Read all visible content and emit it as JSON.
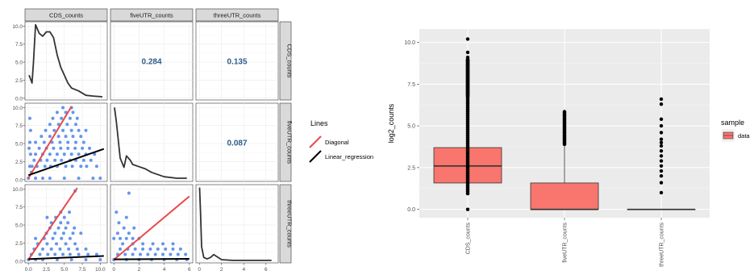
{
  "chart_data": [
    {
      "type": "scatter",
      "variables": [
        "CDS_counts",
        "fiveUTR_counts",
        "threeUTR_counts"
      ],
      "correlations": [
        {
          "row": 0,
          "col": 1,
          "value": "0.284"
        },
        {
          "row": 0,
          "col": 2,
          "value": "0.135"
        },
        {
          "row": 1,
          "col": 2,
          "value": "0.087"
        }
      ],
      "ranges": [
        [
          0,
          10.5
        ],
        [
          0,
          6
        ],
        [
          0,
          6.8
        ]
      ],
      "ticks": {
        "x": [
          [
            0,
            2.5,
            5,
            7.5,
            10
          ],
          [
            0,
            2,
            4,
            6
          ],
          [
            0,
            2,
            4,
            6
          ]
        ],
        "y": [
          [
            0,
            2.5,
            5,
            7.5,
            10
          ],
          [
            0,
            2.5,
            5,
            7.5,
            10
          ],
          [
            0,
            2.5,
            5,
            7.5,
            10
          ]
        ],
        "x_labels": [
          [
            "0.0",
            "2.5",
            "5.0",
            "7.5",
            "10.0"
          ],
          [
            "0",
            "2",
            "4",
            "6"
          ],
          [
            "0",
            "2",
            "4",
            "6"
          ]
        ],
        "y_labels": [
          "0.0",
          "2.5",
          "5.0",
          "7.5",
          "10.0"
        ]
      },
      "density": {
        "CDS_counts": {
          "x": [
            0.1,
            0.5,
            0.7,
            1.0,
            1.5,
            2.0,
            2.5,
            3.0,
            3.5,
            4.0,
            4.5,
            5.0,
            5.5,
            6.0,
            7.0,
            8.0,
            9.0,
            10.3
          ],
          "y": [
            3.2,
            2.1,
            4.8,
            10.2,
            9.0,
            8.6,
            9.2,
            9.2,
            8.4,
            6.0,
            4.3,
            3.2,
            2.1,
            1.4,
            1.0,
            0.4,
            0.3,
            0.2
          ]
        },
        "fiveUTR_counts": {
          "x": [
            0.05,
            0.2,
            0.5,
            0.8,
            1.0,
            1.3,
            1.5,
            2.0,
            2.5,
            3.0,
            4.0,
            5.0,
            5.8
          ],
          "y": [
            10.0,
            8.0,
            3.0,
            1.7,
            3.3,
            2.7,
            2.1,
            1.8,
            1.5,
            1.0,
            0.4,
            0.2,
            0.2
          ]
        },
        "threeUTR_counts": {
          "x": [
            0.02,
            0.1,
            0.2,
            0.4,
            0.7,
            1.0,
            1.3,
            2.0,
            3.0,
            4.0,
            5.0,
            6.5
          ],
          "y": [
            10.2,
            7.0,
            2.0,
            0.5,
            0.3,
            0.5,
            0.9,
            0.2,
            0.1,
            0.1,
            0.1,
            0.1
          ]
        }
      },
      "scatter_points": {
        "fiveUTR_vs_CDS": [
          [
            0,
            0
          ],
          [
            1,
            0
          ],
          [
            2,
            0
          ],
          [
            3,
            0
          ],
          [
            5,
            0
          ],
          [
            7,
            0
          ],
          [
            9,
            0
          ],
          [
            10,
            0
          ],
          [
            0.5,
            1
          ],
          [
            1.2,
            1
          ],
          [
            2.3,
            1
          ],
          [
            3.1,
            1
          ],
          [
            4,
            1
          ],
          [
            5.2,
            1
          ],
          [
            6.1,
            1
          ],
          [
            7.3,
            1
          ],
          [
            8.1,
            1
          ],
          [
            9.5,
            1
          ],
          [
            0.8,
            1.5
          ],
          [
            1.7,
            1.5
          ],
          [
            2.6,
            1.5
          ],
          [
            3.7,
            1.5
          ],
          [
            4.6,
            1.5
          ],
          [
            5.8,
            1.5
          ],
          [
            6.6,
            1.5
          ],
          [
            7.7,
            1.5
          ],
          [
            8.7,
            1.5
          ],
          [
            1,
            2
          ],
          [
            2,
            2
          ],
          [
            3,
            2
          ],
          [
            4,
            2
          ],
          [
            5,
            2
          ],
          [
            6,
            2
          ],
          [
            7,
            2
          ],
          [
            8,
            2
          ],
          [
            9.2,
            2
          ],
          [
            1.5,
            2.5
          ],
          [
            2.5,
            2.5
          ],
          [
            3.5,
            2.5
          ],
          [
            4.5,
            2.5
          ],
          [
            5.5,
            2.5
          ],
          [
            6.5,
            2.5
          ],
          [
            7.5,
            2.5
          ],
          [
            8.5,
            2.5
          ],
          [
            1,
            3
          ],
          [
            2.2,
            3
          ],
          [
            3.3,
            3
          ],
          [
            4.4,
            3
          ],
          [
            5.5,
            3
          ],
          [
            6.6,
            3
          ],
          [
            7.7,
            3
          ],
          [
            1.8,
            3.5
          ],
          [
            3,
            3.5
          ],
          [
            4.2,
            3.5
          ],
          [
            5.2,
            3.5
          ],
          [
            6.2,
            3.5
          ],
          [
            7.3,
            3.5
          ],
          [
            2.4,
            4
          ],
          [
            3.6,
            4
          ],
          [
            4.8,
            4
          ],
          [
            6,
            4
          ],
          [
            7,
            4
          ],
          [
            8,
            4
          ],
          [
            3,
            4.5
          ],
          [
            4.2,
            4.5
          ],
          [
            5.4,
            4.5
          ],
          [
            6.6,
            4.5
          ],
          [
            3.4,
            5
          ],
          [
            4.6,
            5
          ],
          [
            5.8,
            5
          ],
          [
            6.8,
            5
          ],
          [
            4,
            5.5
          ],
          [
            5.2,
            5.5
          ],
          [
            6.2,
            5.5
          ],
          [
            4.8,
            5.9
          ],
          [
            6,
            5.9
          ],
          [
            0.2,
            1
          ],
          [
            0.3,
            2
          ],
          [
            0.2,
            3
          ],
          [
            0.3,
            4
          ],
          [
            0.2,
            5
          ],
          [
            0.4,
            0.5
          ],
          [
            0.1,
            2.5
          ]
        ],
        "threeUTR_vs_CDS": [
          [
            0,
            0
          ],
          [
            1,
            0
          ],
          [
            2,
            0
          ],
          [
            4,
            0
          ],
          [
            6,
            0
          ],
          [
            8,
            0
          ],
          [
            10,
            0
          ],
          [
            0.4,
            0.5
          ],
          [
            1.6,
            0.5
          ],
          [
            2.7,
            0.5
          ],
          [
            3.7,
            0.5
          ],
          [
            4.8,
            0.5
          ],
          [
            5.8,
            0.5
          ],
          [
            7,
            0.5
          ],
          [
            8.3,
            0.5
          ],
          [
            9.5,
            0.5
          ],
          [
            0.8,
            1
          ],
          [
            2,
            1
          ],
          [
            3.2,
            1
          ],
          [
            4.4,
            1
          ],
          [
            5.6,
            1
          ],
          [
            6.8,
            1
          ],
          [
            8,
            1
          ],
          [
            1.3,
            1.5
          ],
          [
            2.6,
            1.5
          ],
          [
            3.9,
            1.5
          ],
          [
            5.2,
            1.5
          ],
          [
            6.5,
            1.5
          ],
          [
            1,
            2
          ],
          [
            2.2,
            2
          ],
          [
            3.4,
            2
          ],
          [
            4.6,
            2
          ],
          [
            5.8,
            2
          ],
          [
            2.5,
            2.5
          ],
          [
            3.7,
            2.5
          ],
          [
            4.9,
            2.5
          ],
          [
            6.2,
            2.5
          ],
          [
            7.3,
            2.5
          ],
          [
            3,
            3
          ],
          [
            4.2,
            3
          ],
          [
            5.2,
            3
          ],
          [
            6.4,
            3
          ],
          [
            3.2,
            3.5
          ],
          [
            4.5,
            3.5
          ],
          [
            5.5,
            3.5
          ],
          [
            2.6,
            4
          ],
          [
            3.8,
            4
          ],
          [
            5,
            4
          ],
          [
            4.5,
            4.5
          ],
          [
            5.7,
            4.5
          ],
          [
            6.5,
            6.5
          ]
        ],
        "threeUTR_vs_fiveUTR": [
          [
            0,
            0
          ],
          [
            1,
            0
          ],
          [
            2,
            0
          ],
          [
            3,
            0
          ],
          [
            4,
            0
          ],
          [
            5,
            0
          ],
          [
            5.8,
            0
          ],
          [
            0.3,
            0.5
          ],
          [
            0.9,
            0.5
          ],
          [
            1.5,
            0.5
          ],
          [
            2.1,
            0.5
          ],
          [
            2.7,
            0.5
          ],
          [
            3.3,
            0.5
          ],
          [
            3.9,
            0.5
          ],
          [
            4.5,
            0.5
          ],
          [
            5.1,
            0.5
          ],
          [
            5.7,
            0.5
          ],
          [
            0.5,
            1
          ],
          [
            1.1,
            1
          ],
          [
            1.7,
            1
          ],
          [
            2.3,
            1
          ],
          [
            2.9,
            1
          ],
          [
            3.5,
            1
          ],
          [
            4.1,
            1
          ],
          [
            4.7,
            1
          ],
          [
            5.3,
            1
          ],
          [
            0.7,
            1.5
          ],
          [
            1.5,
            1.5
          ],
          [
            2.3,
            1.5
          ],
          [
            3.1,
            1.5
          ],
          [
            3.9,
            1.5
          ],
          [
            4.7,
            1.5
          ],
          [
            0,
            2
          ],
          [
            0.5,
            2
          ],
          [
            1,
            2
          ],
          [
            1.5,
            2
          ],
          [
            2,
            2
          ],
          [
            0.3,
            2.5
          ],
          [
            1.2,
            2.5
          ],
          [
            0.8,
            3
          ],
          [
            1.6,
            3
          ],
          [
            0.4,
            3.5
          ],
          [
            1,
            4
          ],
          [
            0.2,
            4.5
          ],
          [
            1.2,
            6.3
          ]
        ]
      },
      "lines": {
        "fiveUTR_vs_CDS": {
          "diagonal": [
            [
              0,
              0
            ],
            [
              6,
              6
            ]
          ],
          "regression": [
            [
              0,
              0.25
            ],
            [
              10.5,
              2.45
            ]
          ]
        },
        "threeUTR_vs_CDS": {
          "diagonal": [
            [
              0,
              0
            ],
            [
              6.8,
              6.8
            ]
          ],
          "regression": [
            [
              0,
              0.05
            ],
            [
              10.5,
              0.35
            ]
          ]
        },
        "threeUTR_vs_fiveUTR": {
          "diagonal": [
            [
              0,
              0
            ],
            [
              6,
              6
            ]
          ],
          "regression": [
            [
              0,
              0.03
            ],
            [
              6,
              0.08
            ]
          ]
        }
      },
      "legend": {
        "title": "Lines",
        "items": [
          "Diagonal",
          "Linear_regression"
        ]
      },
      "colors": {
        "points": "#6495ED",
        "diagonal": "#E8494C",
        "regression": "#000000",
        "density": "#333333",
        "panel_bg": "#FFFFFF",
        "strip_bg": "#D9D9D9",
        "corr_text": "#2E5C8A"
      }
    },
    {
      "type": "box",
      "categories": [
        "CDS_counts",
        "fiveUTR_counts",
        "threeUTR_counts"
      ],
      "ylabel": "log2_counts",
      "ylim": [
        -0.5,
        10.8
      ],
      "y_ticks": [
        0,
        2.5,
        5,
        7.5,
        10
      ],
      "y_tick_labels": [
        "0.0",
        "2.5",
        "5.0",
        "7.5",
        "10.0"
      ],
      "boxes": [
        {
          "q1": 1.58,
          "median": 2.6,
          "q3": 3.7,
          "whisker_low": 0.95,
          "whisker_high": 6.8,
          "outliers": [
            0,
            10.2,
            9.4,
            9.1,
            8.9,
            8.6,
            8.3,
            8.1,
            7.9,
            7.7,
            7.5,
            7.3,
            7.1,
            6.95
          ]
        },
        {
          "q1": 0,
          "median": 0,
          "q3": 1.58,
          "whisker_low": 0,
          "whisker_high": 3.9,
          "outliers": [
            4.0,
            4.2,
            4.4,
            4.6,
            4.8,
            5.0,
            5.2,
            5.4,
            5.6,
            5.85
          ]
        },
        {
          "q1": 0,
          "median": 0,
          "q3": 0,
          "whisker_low": 0,
          "whisker_high": 0,
          "outliers": [
            1.0,
            1.6,
            2.0,
            2.3,
            2.6,
            2.9,
            3.2,
            3.5,
            3.8,
            4.0,
            4.2,
            4.6,
            5.0,
            5.4,
            6.3,
            6.6
          ]
        }
      ],
      "legend": {
        "title": "sample",
        "items": [
          "data"
        ]
      },
      "colors": {
        "box_fill": "#F8766D",
        "panel_bg": "#EBEBEB",
        "grid": "#FFFFFF",
        "points": "#000000"
      }
    }
  ]
}
